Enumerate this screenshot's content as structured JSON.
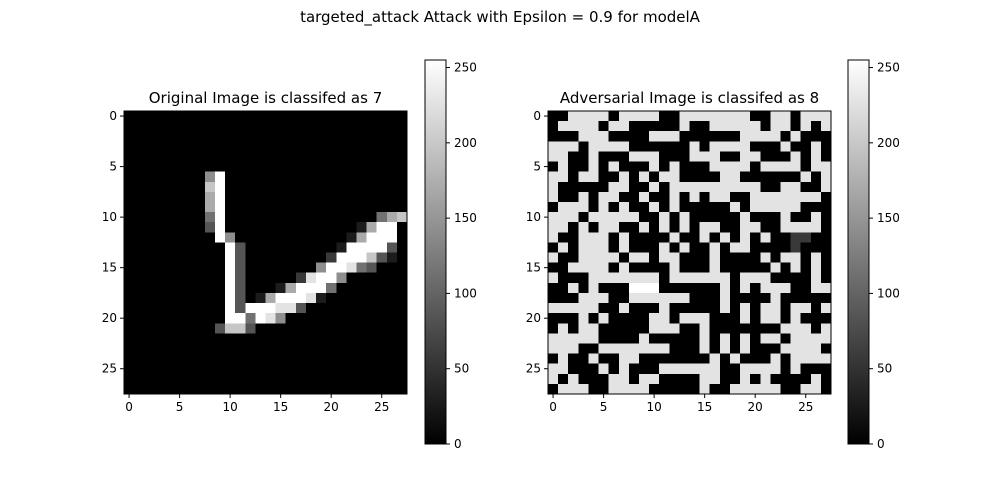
{
  "figure": {
    "suptitle": "targeted_attack Attack with Epsilon = 0.9 for modelA"
  },
  "chart_data": [
    {
      "type": "heatmap",
      "title": "Original Image is classifed as 7",
      "xlabel": "",
      "ylabel": "",
      "xticks": [
        0,
        5,
        10,
        15,
        20,
        25
      ],
      "yticks": [
        0,
        5,
        10,
        15,
        20,
        25
      ],
      "xlim": [
        -0.5,
        27.5
      ],
      "ylim": [
        27.5,
        -0.5
      ],
      "colormap": "gray",
      "colorbar": {
        "min": 0,
        "max": 255,
        "ticks": [
          0,
          50,
          100,
          150,
          200,
          250
        ]
      },
      "rows": [
        "0000000000000000000000000000",
        "0000000000000000000000000000",
        "0000000000000000000000000000",
        "0000000000000000000000000000",
        "0000000000000000000000000000",
        "0000000000000000000000000000",
        "0000000059000000000000000000",
        "0000000079000000000000000000",
        "0000000069000000000000000000",
        "0000000069000000000000000000",
        "0000000049000000000000000467",
        "0000000039000000000000016990",
        "0000000009500000000000169990",
        "0000000000930000000001999930",
        "0000000000930000000029997310",
        "0000000000930000000599843000",
        "0000000000930000028995000000",
        "0000000000930001699940000000",
        "0000000000930169998100000000",
        "0000000000939998830000000000",
        "0000000000994985000000000000",
        "0000000003773000000000000000",
        "0000000000000000000000000000",
        "0000000000000000000000000000",
        "0000000000000000000000000000",
        "0000000000000000000000000000",
        "0000000000000000000000000000",
        "0000000000000000000000000000"
      ]
    },
    {
      "type": "heatmap",
      "title": "Adversarial Image is classifed as 8",
      "xlabel": "",
      "ylabel": "",
      "xticks": [
        0,
        5,
        10,
        15,
        20,
        25
      ],
      "yticks": [
        0,
        5,
        10,
        15,
        20,
        25
      ],
      "xlim": [
        -0.5,
        27.5
      ],
      "ylim": [
        27.5,
        -0.5
      ],
      "colormap": "gray",
      "colorbar": {
        "min": 0,
        "max": 255,
        "ticks": [
          0,
          50,
          100,
          150,
          200,
          250
        ]
      },
      "rows": [
        "0088880888800888888800880888",
        "0888808800000800888880880808",
        "0008880000888000000888808000",
        "8880888800000080888800080080",
        "8800800088800088800880008080",
        "0800808000808000888808888088",
        "8808800808088000088000000808",
        "8000008800808888888880088008",
        "8008088008008080880088888880",
        "0888080800808000008088888000",
        "8880888880080800000800080080",
        "8808088008080808800880088880",
        "8008880800008008080808002200",
        "0808880800080800808800002000",
        "8008888088088000800008088080",
        "0088880800008000800000808080",
        "8000888888808888880888000080",
        "0080800099900000080808880088",
        "0008880088888800080000800000",
        "8888800800080000080808808808",
        "0008080000880888000808808000",
        "0808800000888008000000088808",
        "8888800008000008080808808888",
        "8880088888880008080800088880",
        "0800800880000000808000808888",
        "8800080800088888800888808000",
        "8080008808800008800808000080",
        "0888008888000008008888800880"
      ]
    }
  ]
}
